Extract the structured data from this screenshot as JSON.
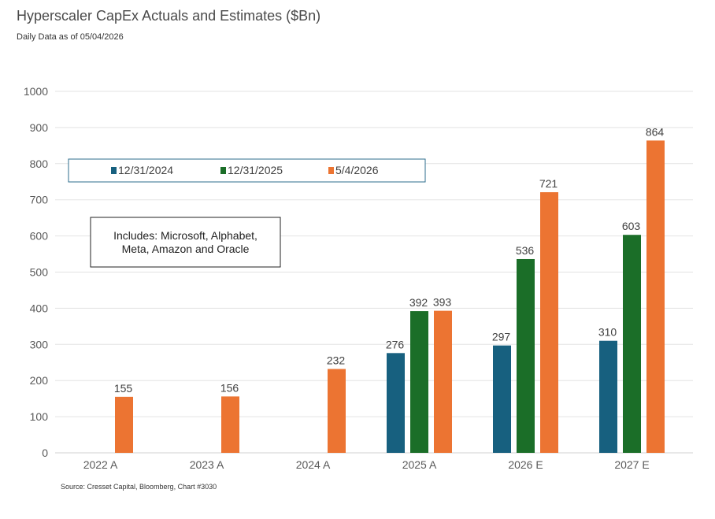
{
  "title": "Hyperscaler CapEx Actuals and Estimates ($Bn)",
  "subtitle": "Daily Data as of 05/04/2026",
  "source": "Source: Cresset Capital, Bloomberg, Chart #3030",
  "note": {
    "line1": "Includes: Microsoft, Alphabet,",
    "line2": "Meta, Amazon and Oracle"
  },
  "chart_data": {
    "type": "bar",
    "title": "Hyperscaler CapEx Actuals and Estimates ($Bn)",
    "xlabel": "",
    "ylabel": "",
    "ylim": [
      0,
      1000
    ],
    "yticks": [
      0,
      100,
      200,
      300,
      400,
      500,
      600,
      700,
      800,
      900,
      1000
    ],
    "grid": true,
    "legend_position": "top-left",
    "categories": [
      "2022 A",
      "2023 A",
      "2024 A",
      "2025 A",
      "2026 E",
      "2027 E"
    ],
    "series": [
      {
        "name": "12/31/2024",
        "color": "#17607f",
        "values": [
          null,
          null,
          null,
          276,
          297,
          310
        ]
      },
      {
        "name": "12/31/2025",
        "color": "#1b6e28",
        "values": [
          null,
          null,
          null,
          392,
          536,
          603
        ]
      },
      {
        "name": "5/4/2026",
        "color": "#ec7432",
        "values": [
          155,
          156,
          232,
          393,
          721,
          864
        ]
      }
    ]
  }
}
